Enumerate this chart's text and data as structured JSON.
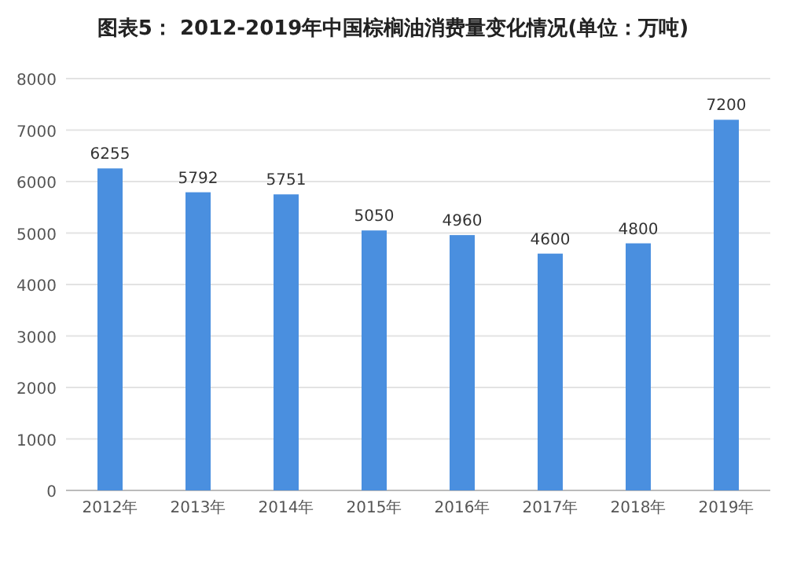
{
  "chart_data": {
    "type": "bar",
    "title": "图表5： 2012-2019年中国棕榈油消费量变化情况(单位：万吨)",
    "categories": [
      "2012年",
      "2013年",
      "2014年",
      "2015年",
      "2016年",
      "2017年",
      "2018年",
      "2019年"
    ],
    "values": [
      6255,
      5792,
      5751,
      5050,
      4960,
      4600,
      4800,
      7200
    ],
    "color": "#4a8fdf",
    "ylim": [
      0,
      8000
    ],
    "yticks": [
      0,
      1000,
      2000,
      3000,
      4000,
      5000,
      6000,
      7000,
      8000
    ],
    "grid": "y",
    "data_labels": true
  }
}
